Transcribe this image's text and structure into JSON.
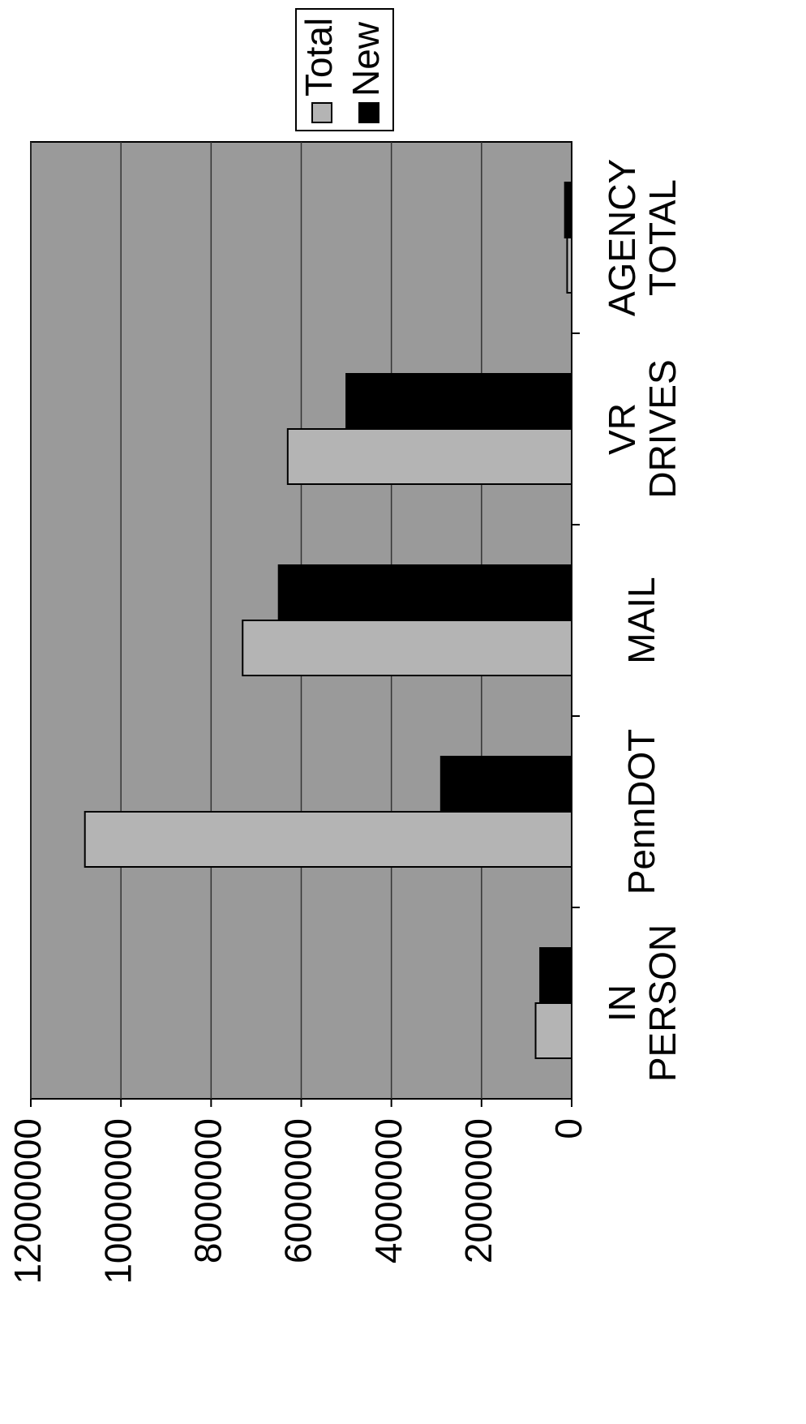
{
  "chart_data": {
    "type": "bar",
    "categories": [
      "IN PERSON",
      "PennDOT",
      "MAIL",
      "VR DRIVES",
      "AGENCY TOTAL"
    ],
    "series": [
      {
        "name": "Total",
        "color": "#b4b4b4",
        "values": [
          800000,
          10800000,
          7300000,
          6300000,
          100000
        ]
      },
      {
        "name": "New",
        "color": "#000000",
        "values": [
          700000,
          2900000,
          6500000,
          5000000,
          150000
        ]
      }
    ],
    "ylim": [
      0,
      12000000
    ],
    "yticks": [
      0,
      2000000,
      4000000,
      6000000,
      8000000,
      10000000,
      12000000
    ],
    "grid": true,
    "legend": "right"
  }
}
